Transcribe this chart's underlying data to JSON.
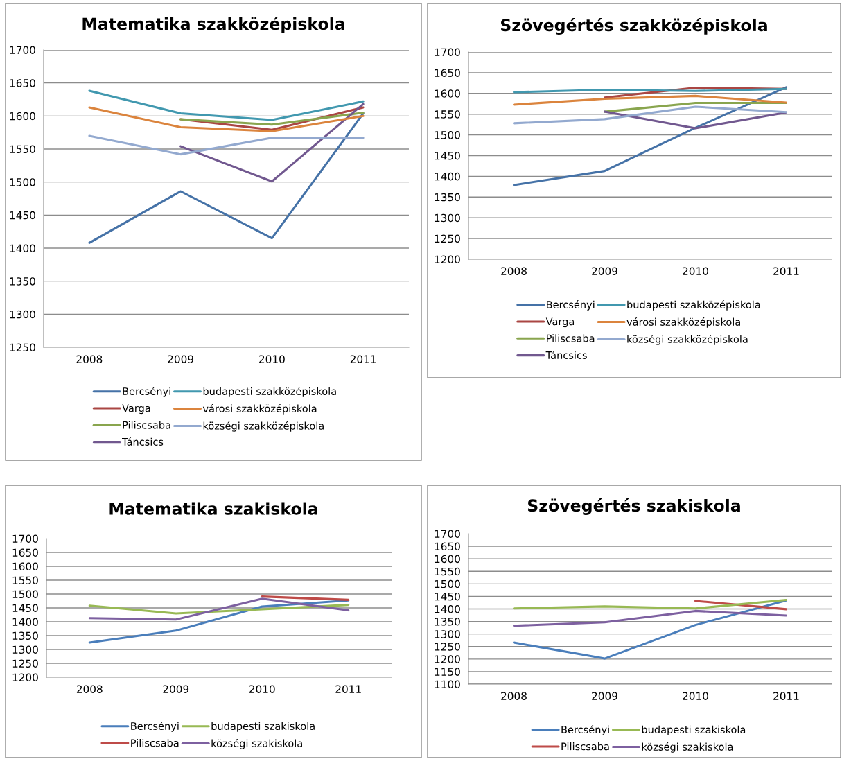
{
  "chart_data": [
    {
      "type": "line",
      "title": "Matematika szakközépiskola",
      "categories": [
        "2008",
        "2009",
        "2010",
        "2011"
      ],
      "ylim": [
        1250,
        1700
      ],
      "yticks": [
        1250,
        1300,
        1350,
        1400,
        1450,
        1500,
        1550,
        1600,
        1650,
        1700
      ],
      "grid": "y",
      "legend": "bottom",
      "series": [
        {
          "name": "Bercsényi",
          "color": "#4572a7",
          "values": [
            1408,
            1486,
            1415,
            1604
          ]
        },
        {
          "name": "Varga",
          "color": "#aa4643",
          "values": [
            null,
            1595,
            1579,
            1613
          ]
        },
        {
          "name": "Piliscsaba",
          "color": "#89a54e",
          "values": [
            null,
            1595,
            1587,
            1605
          ]
        },
        {
          "name": "Táncsics",
          "color": "#71588f",
          "values": [
            null,
            1554,
            1501,
            1618
          ]
        },
        {
          "name": "budapesti szakközépiskola",
          "color": "#4198af",
          "values": [
            1638,
            1604,
            1594,
            1622
          ]
        },
        {
          "name": "városi szakközépiskola",
          "color": "#db843d",
          "values": [
            1613,
            1583,
            1577,
            1600
          ]
        },
        {
          "name": "községi szakközépiskola",
          "color": "#93a9cf",
          "values": [
            1570,
            1542,
            1567,
            1567
          ]
        }
      ]
    },
    {
      "type": "line",
      "title": "Szövegértés szakközépiskola",
      "categories": [
        "2008",
        "2009",
        "2010",
        "2011"
      ],
      "ylim": [
        1200,
        1700
      ],
      "yticks": [
        1200,
        1250,
        1300,
        1350,
        1400,
        1450,
        1500,
        1550,
        1600,
        1650,
        1700
      ],
      "grid": "y",
      "legend": "bottom",
      "series": [
        {
          "name": "Bercsényi",
          "color": "#4572a7",
          "values": [
            1379,
            1413,
            1517,
            1615
          ]
        },
        {
          "name": "Varga",
          "color": "#aa4643",
          "values": [
            null,
            1590,
            1614,
            1611
          ]
        },
        {
          "name": "Piliscsaba",
          "color": "#89a54e",
          "values": [
            null,
            1556,
            1577,
            1577
          ]
        },
        {
          "name": "Táncsics",
          "color": "#71588f",
          "values": [
            null,
            1556,
            1516,
            1554
          ]
        },
        {
          "name": "budapesti szakközépiskola",
          "color": "#4198af",
          "values": [
            1603,
            1609,
            1606,
            1611
          ]
        },
        {
          "name": "városi szakközépiskola",
          "color": "#db843d",
          "values": [
            1573,
            1587,
            1594,
            1578
          ]
        },
        {
          "name": "községi szakközépiskola",
          "color": "#93a9cf",
          "values": [
            1528,
            1538,
            1568,
            1555
          ]
        }
      ]
    },
    {
      "type": "line",
      "title": "Matematika szakiskola",
      "categories": [
        "2008",
        "2009",
        "2010",
        "2011"
      ],
      "ylim": [
        1200,
        1700
      ],
      "yticks": [
        1200,
        1250,
        1300,
        1350,
        1400,
        1450,
        1500,
        1550,
        1600,
        1650,
        1700
      ],
      "grid": "y",
      "legend": "bottom",
      "series": [
        {
          "name": "Bercsényi",
          "color": "#4a7ebb",
          "values": [
            1325,
            1368,
            1455,
            1477
          ]
        },
        {
          "name": "Piliscsaba",
          "color": "#be4b48",
          "values": [
            null,
            null,
            1491,
            1479
          ]
        },
        {
          "name": "budapesti szakiskola",
          "color": "#98b954",
          "values": [
            1458,
            1430,
            1445,
            1461
          ]
        },
        {
          "name": "községi szakiskola",
          "color": "#7d60a0",
          "values": [
            1413,
            1408,
            1483,
            1441
          ]
        }
      ]
    },
    {
      "type": "line",
      "title": "Szövegértés szakiskola",
      "categories": [
        "2008",
        "2009",
        "2010",
        "2011"
      ],
      "ylim": [
        1100,
        1700
      ],
      "yticks": [
        1100,
        1150,
        1200,
        1250,
        1300,
        1350,
        1400,
        1450,
        1500,
        1550,
        1600,
        1650,
        1700
      ],
      "grid": "y",
      "legend": "bottom",
      "series": [
        {
          "name": "Bercsényi",
          "color": "#4a7ebb",
          "values": [
            1266,
            1202,
            1336,
            1434
          ]
        },
        {
          "name": "Piliscsaba",
          "color": "#be4b48",
          "values": [
            null,
            null,
            1432,
            1399
          ]
        },
        {
          "name": "budapesti szakiskola",
          "color": "#98b954",
          "values": [
            1402,
            1410,
            1402,
            1436
          ]
        },
        {
          "name": "községi szakiskola",
          "color": "#7d60a0",
          "values": [
            1333,
            1347,
            1392,
            1374
          ]
        }
      ]
    }
  ]
}
